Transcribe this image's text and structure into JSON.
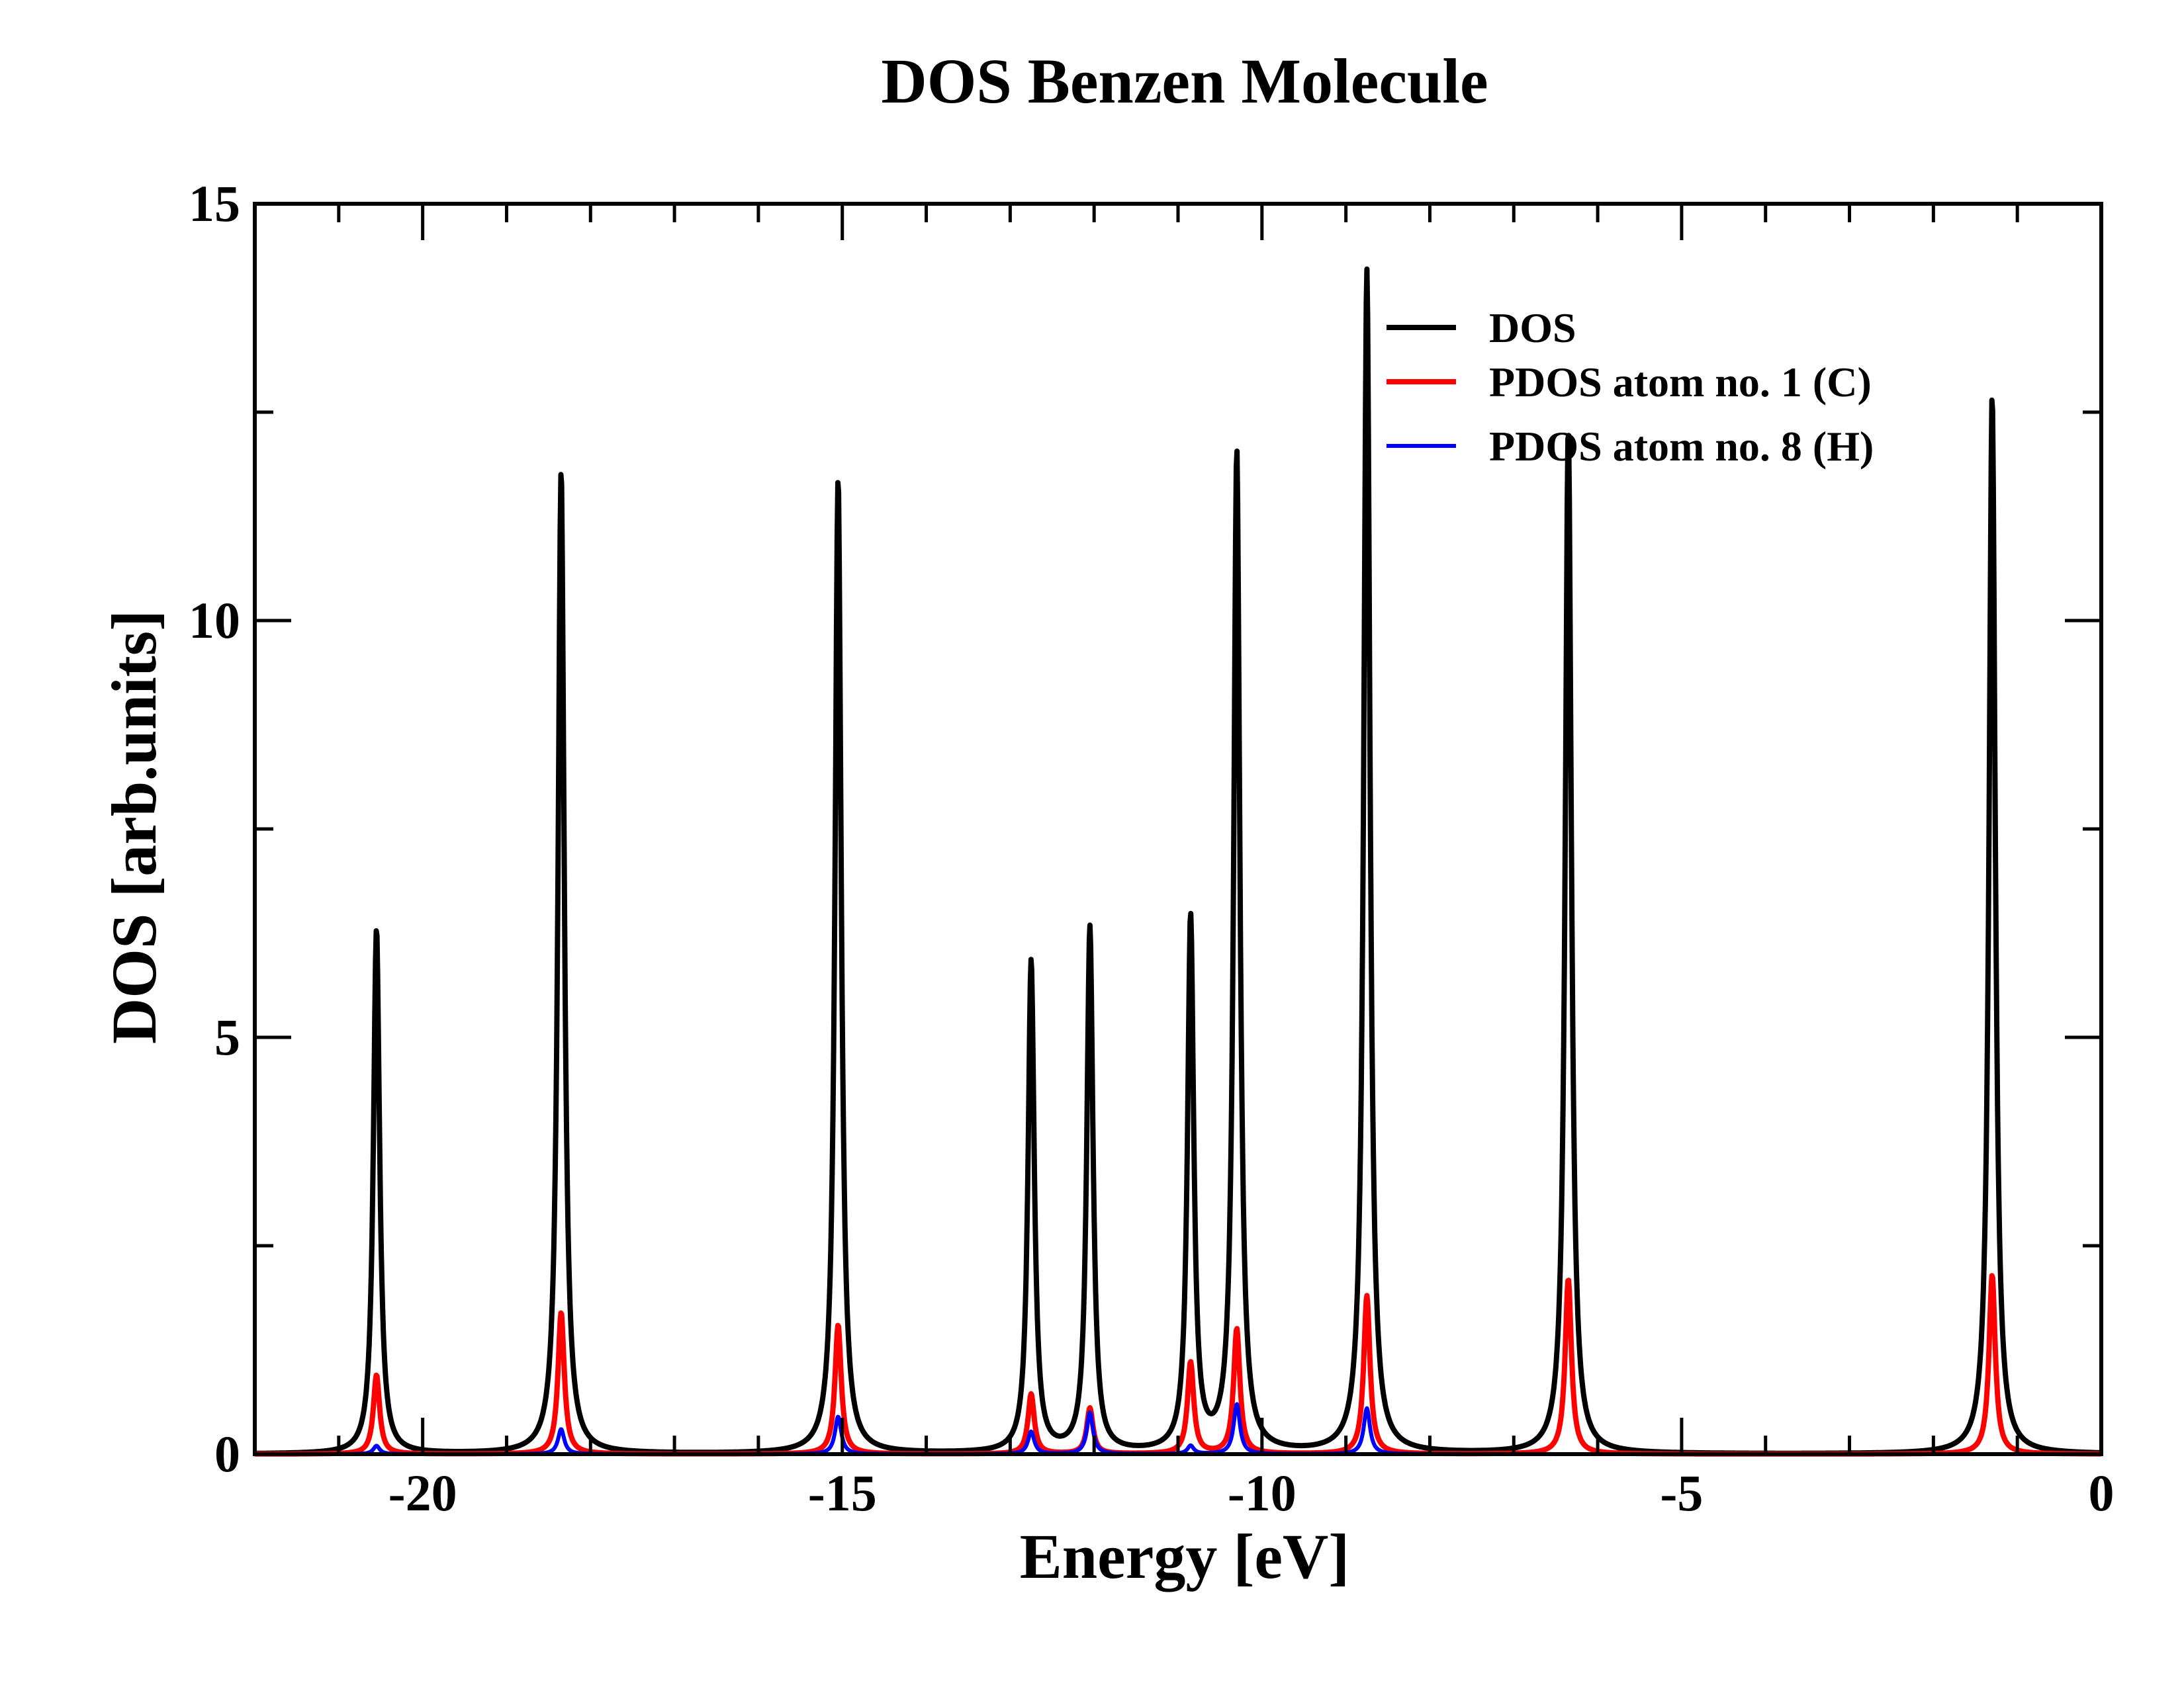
{
  "chart_data": {
    "type": "line",
    "title": "DOS Benzen Molecule",
    "xlabel": "Energy [eV]",
    "ylabel": "DOS [arb.units]",
    "xlim": [
      -22,
      0
    ],
    "ylim": [
      0,
      15
    ],
    "xticks": [
      -20,
      -15,
      -10,
      -5,
      0
    ],
    "xtick_labels": [
      "-20",
      "-15",
      "-10",
      "-5",
      "0"
    ],
    "x_minor_step": 1,
    "yticks": [
      0,
      5,
      10,
      15
    ],
    "ytick_labels": [
      "0",
      "5",
      "10",
      "15"
    ],
    "y_minor_step": 2.5,
    "grid": false,
    "legend_position": "top-right",
    "broadening_width_eV": 0.045,
    "series": [
      {
        "name": "DOS",
        "color": "#000000",
        "peaks": [
          {
            "energy": -20.55,
            "height": 6.3
          },
          {
            "energy": -18.35,
            "height": 11.8
          },
          {
            "energy": -15.05,
            "height": 11.7
          },
          {
            "energy": -12.75,
            "height": 5.9
          },
          {
            "energy": -12.05,
            "height": 6.3
          },
          {
            "energy": -10.85,
            "height": 6.4
          },
          {
            "energy": -10.3,
            "height": 12.0
          },
          {
            "energy": -8.75,
            "height": 14.2
          },
          {
            "energy": -6.35,
            "height": 12.3
          },
          {
            "energy": -1.3,
            "height": 12.7
          }
        ]
      },
      {
        "name": "PDOS atom no. 1 (C)",
        "color": "#ff0000",
        "peaks": [
          {
            "energy": -20.55,
            "height": 0.95
          },
          {
            "energy": -18.35,
            "height": 1.7
          },
          {
            "energy": -15.05,
            "height": 1.55
          },
          {
            "energy": -12.75,
            "height": 0.72
          },
          {
            "energy": -12.05,
            "height": 0.55
          },
          {
            "energy": -10.85,
            "height": 1.1
          },
          {
            "energy": -10.3,
            "height": 1.5
          },
          {
            "energy": -8.75,
            "height": 1.9
          },
          {
            "energy": -6.35,
            "height": 2.1
          },
          {
            "energy": -1.3,
            "height": 2.15
          }
        ]
      },
      {
        "name": "PDOS atom no. 8 (H)",
        "color": "#0000ff",
        "peaks": [
          {
            "energy": -20.55,
            "height": 0.1
          },
          {
            "energy": -18.35,
            "height": 0.3
          },
          {
            "energy": -15.05,
            "height": 0.45
          },
          {
            "energy": -12.75,
            "height": 0.27
          },
          {
            "energy": -12.05,
            "height": 0.5
          },
          {
            "energy": -10.85,
            "height": 0.1
          },
          {
            "energy": -10.3,
            "height": 0.6
          },
          {
            "energy": -8.75,
            "height": 0.55
          },
          {
            "energy": -6.35,
            "height": 0.0
          },
          {
            "energy": -1.3,
            "height": 0.0
          }
        ]
      }
    ]
  }
}
